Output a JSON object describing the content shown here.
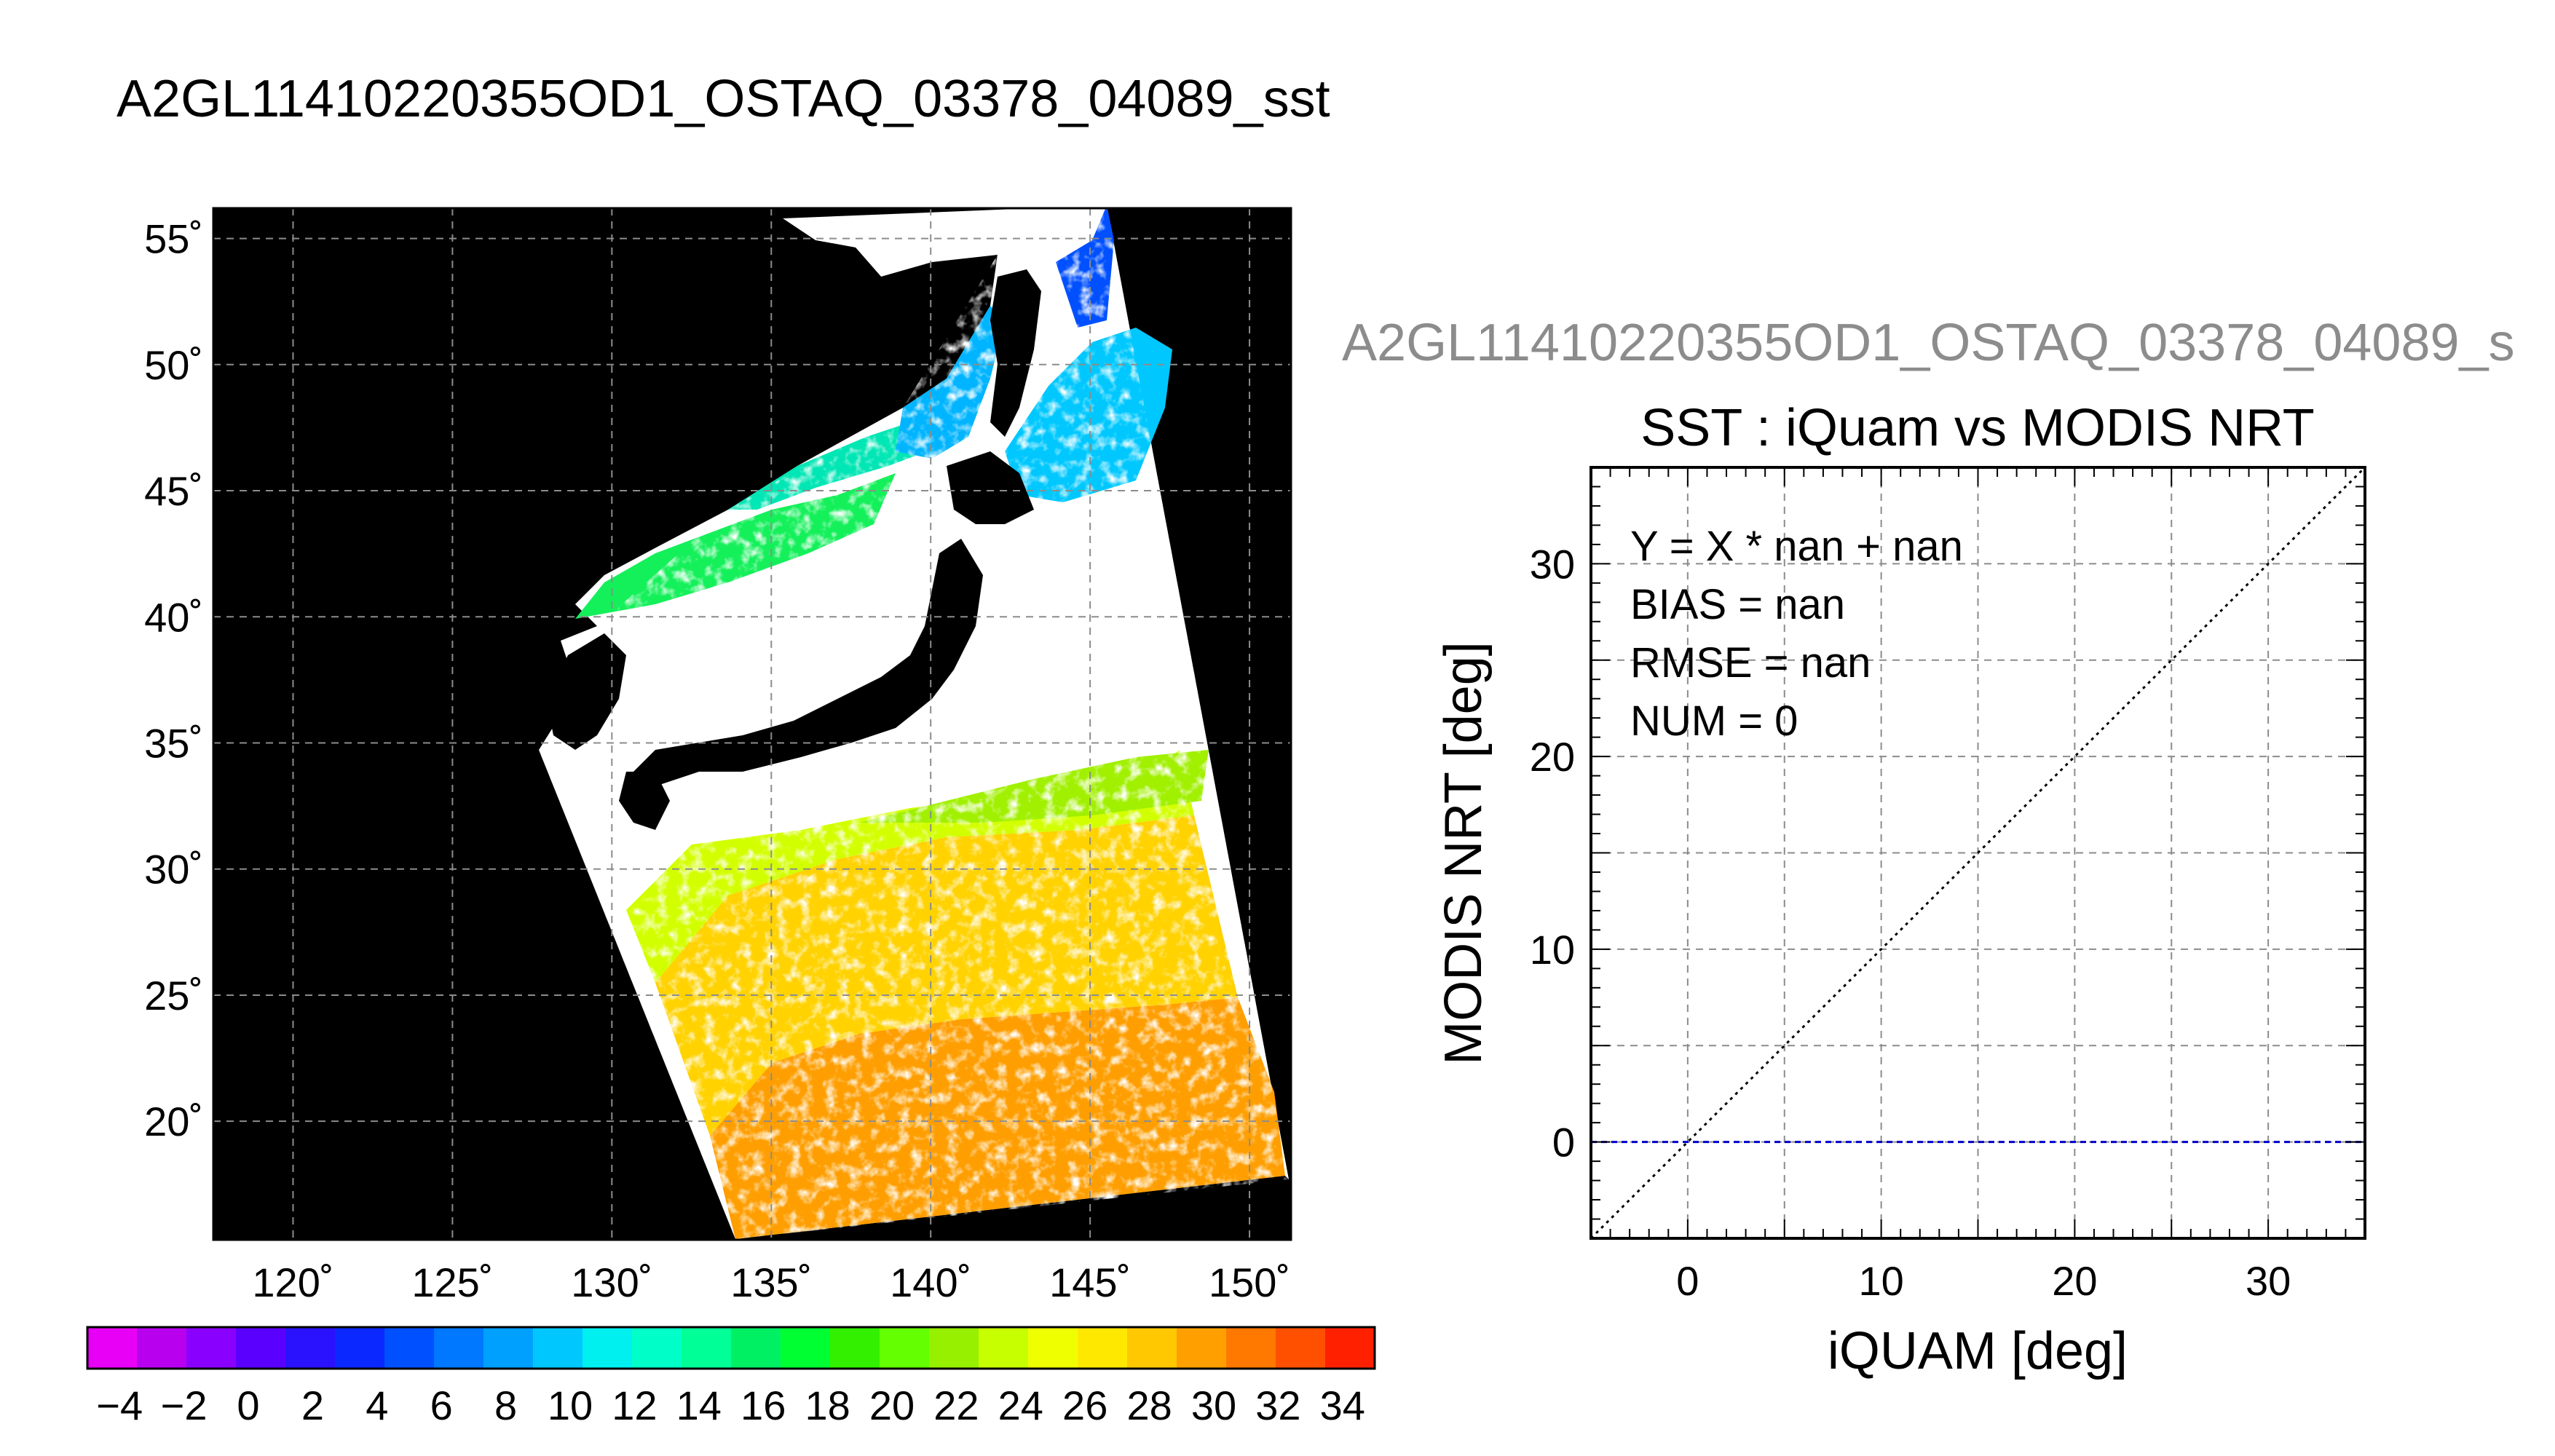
{
  "main_title": "A2GL11410220355OD1_OSTAQ_03378_04089_sst",
  "map": {
    "lon_ticks": [
      "120˚",
      "125˚",
      "130˚",
      "135˚",
      "140˚",
      "145˚",
      "150˚"
    ],
    "lat_ticks": [
      "55˚",
      "50˚",
      "45˚",
      "40˚",
      "35˚",
      "30˚",
      "25˚",
      "20˚"
    ],
    "lon_values": [
      120,
      125,
      130,
      135,
      140,
      145,
      150
    ],
    "lat_values": [
      55,
      50,
      45,
      40,
      35,
      30,
      25,
      20
    ],
    "lon_range": [
      117.5,
      151.3
    ],
    "lat_range": [
      15.3,
      56.2
    ],
    "grid": true,
    "background_color": "#000000",
    "cloud_color": "#ffffff"
  },
  "colorbar": {
    "tick_labels": [
      "−4",
      "−2",
      "0",
      "2",
      "4",
      "6",
      "8",
      "10",
      "12",
      "14",
      "16",
      "18",
      "20",
      "22",
      "24",
      "26",
      "28",
      "30",
      "32",
      "34"
    ],
    "range": [
      -5,
      35
    ],
    "step": 2,
    "colors": [
      "#e800f6",
      "#b800ef",
      "#8a00ff",
      "#5a00ff",
      "#2a12ff",
      "#0a28ff",
      "#0050ff",
      "#0078ff",
      "#00a0ff",
      "#00c8ff",
      "#00f0f0",
      "#00ffc8",
      "#00ff96",
      "#00f064",
      "#00ff32",
      "#32f000",
      "#64ff00",
      "#96f000",
      "#c8ff00",
      "#f0ff00",
      "#ffe800",
      "#ffc800",
      "#ffa000",
      "#ff7800",
      "#ff5000",
      "#ff2000"
    ]
  },
  "chart_data": {
    "type": "scatter",
    "title": "SST : iQuam vs MODIS NRT",
    "overlay_title": "A2GL11410220355OD1_OSTAQ_03378_04089_s",
    "xlabel": "iQUAM [deg]",
    "ylabel": "MODIS NRT [deg]",
    "xlim": [
      -5,
      35
    ],
    "ylim": [
      -5,
      35
    ],
    "xticks": [
      0,
      10,
      20,
      30
    ],
    "yticks": [
      0,
      10,
      20,
      30
    ],
    "grid": true,
    "series": [],
    "reference_lines": [
      {
        "kind": "one-to-one",
        "x": [
          -5,
          35
        ],
        "y": [
          -5,
          35
        ],
        "color": "#000000",
        "style": "dotted"
      },
      {
        "kind": "regression",
        "x": [
          -5,
          35
        ],
        "y": [
          0,
          0
        ],
        "color": "#0000cc",
        "style": "dashed"
      }
    ],
    "annotations": [
      "Y = X * nan + nan",
      "BIAS = nan",
      "RMSE = nan",
      "NUM = 0"
    ]
  }
}
